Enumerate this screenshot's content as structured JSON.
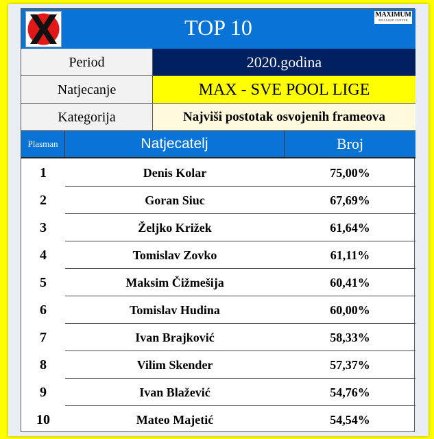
{
  "header": {
    "title": "TOP 10",
    "logo_right_big": "MAXIMUM",
    "logo_right_small": "BILLIARD CENTER",
    "logo_left_icon": "x-logo-icon"
  },
  "info": {
    "period_label": "Period",
    "period_value": "2020.godina",
    "natjecanje_label": "Natjecanje",
    "natjecanje_value": "MAX - SVE POOL LIGE",
    "kategorija_label": "Kategorija",
    "kategorija_value": "Najviši postotak osvojenih frameova"
  },
  "table": {
    "headers": [
      "Plasman",
      "Natjecatelj",
      "Broj"
    ],
    "rows": [
      {
        "rank": "1",
        "name": "Denis Kolar",
        "value": "75,00%"
      },
      {
        "rank": "2",
        "name": "Goran Siuc",
        "value": "67,69%"
      },
      {
        "rank": "3",
        "name": "Željko Križek",
        "value": "61,64%"
      },
      {
        "rank": "4",
        "name": "Tomislav Zovko",
        "value": "61,11%"
      },
      {
        "rank": "5",
        "name": "Maksim Čižmešija",
        "value": "60,41%"
      },
      {
        "rank": "6",
        "name": "Tomislav Hudina",
        "value": "60,00%"
      },
      {
        "rank": "7",
        "name": "Ivan Brajković",
        "value": "58,33%"
      },
      {
        "rank": "8",
        "name": "Vilim Skender",
        "value": "57,37%"
      },
      {
        "rank": "9",
        "name": "Ivan Blažević",
        "value": "54,76%"
      },
      {
        "rank": "10",
        "name": "Mateo Majetić",
        "value": "54,54%"
      }
    ]
  },
  "colors": {
    "background": "#ffff00",
    "header_blue": "#0a74d6",
    "period_navy": "#002060",
    "natjecanje_yellow": "#ffff00",
    "kategorija_cream": "#fff9de",
    "logo_red": "#e01818"
  }
}
